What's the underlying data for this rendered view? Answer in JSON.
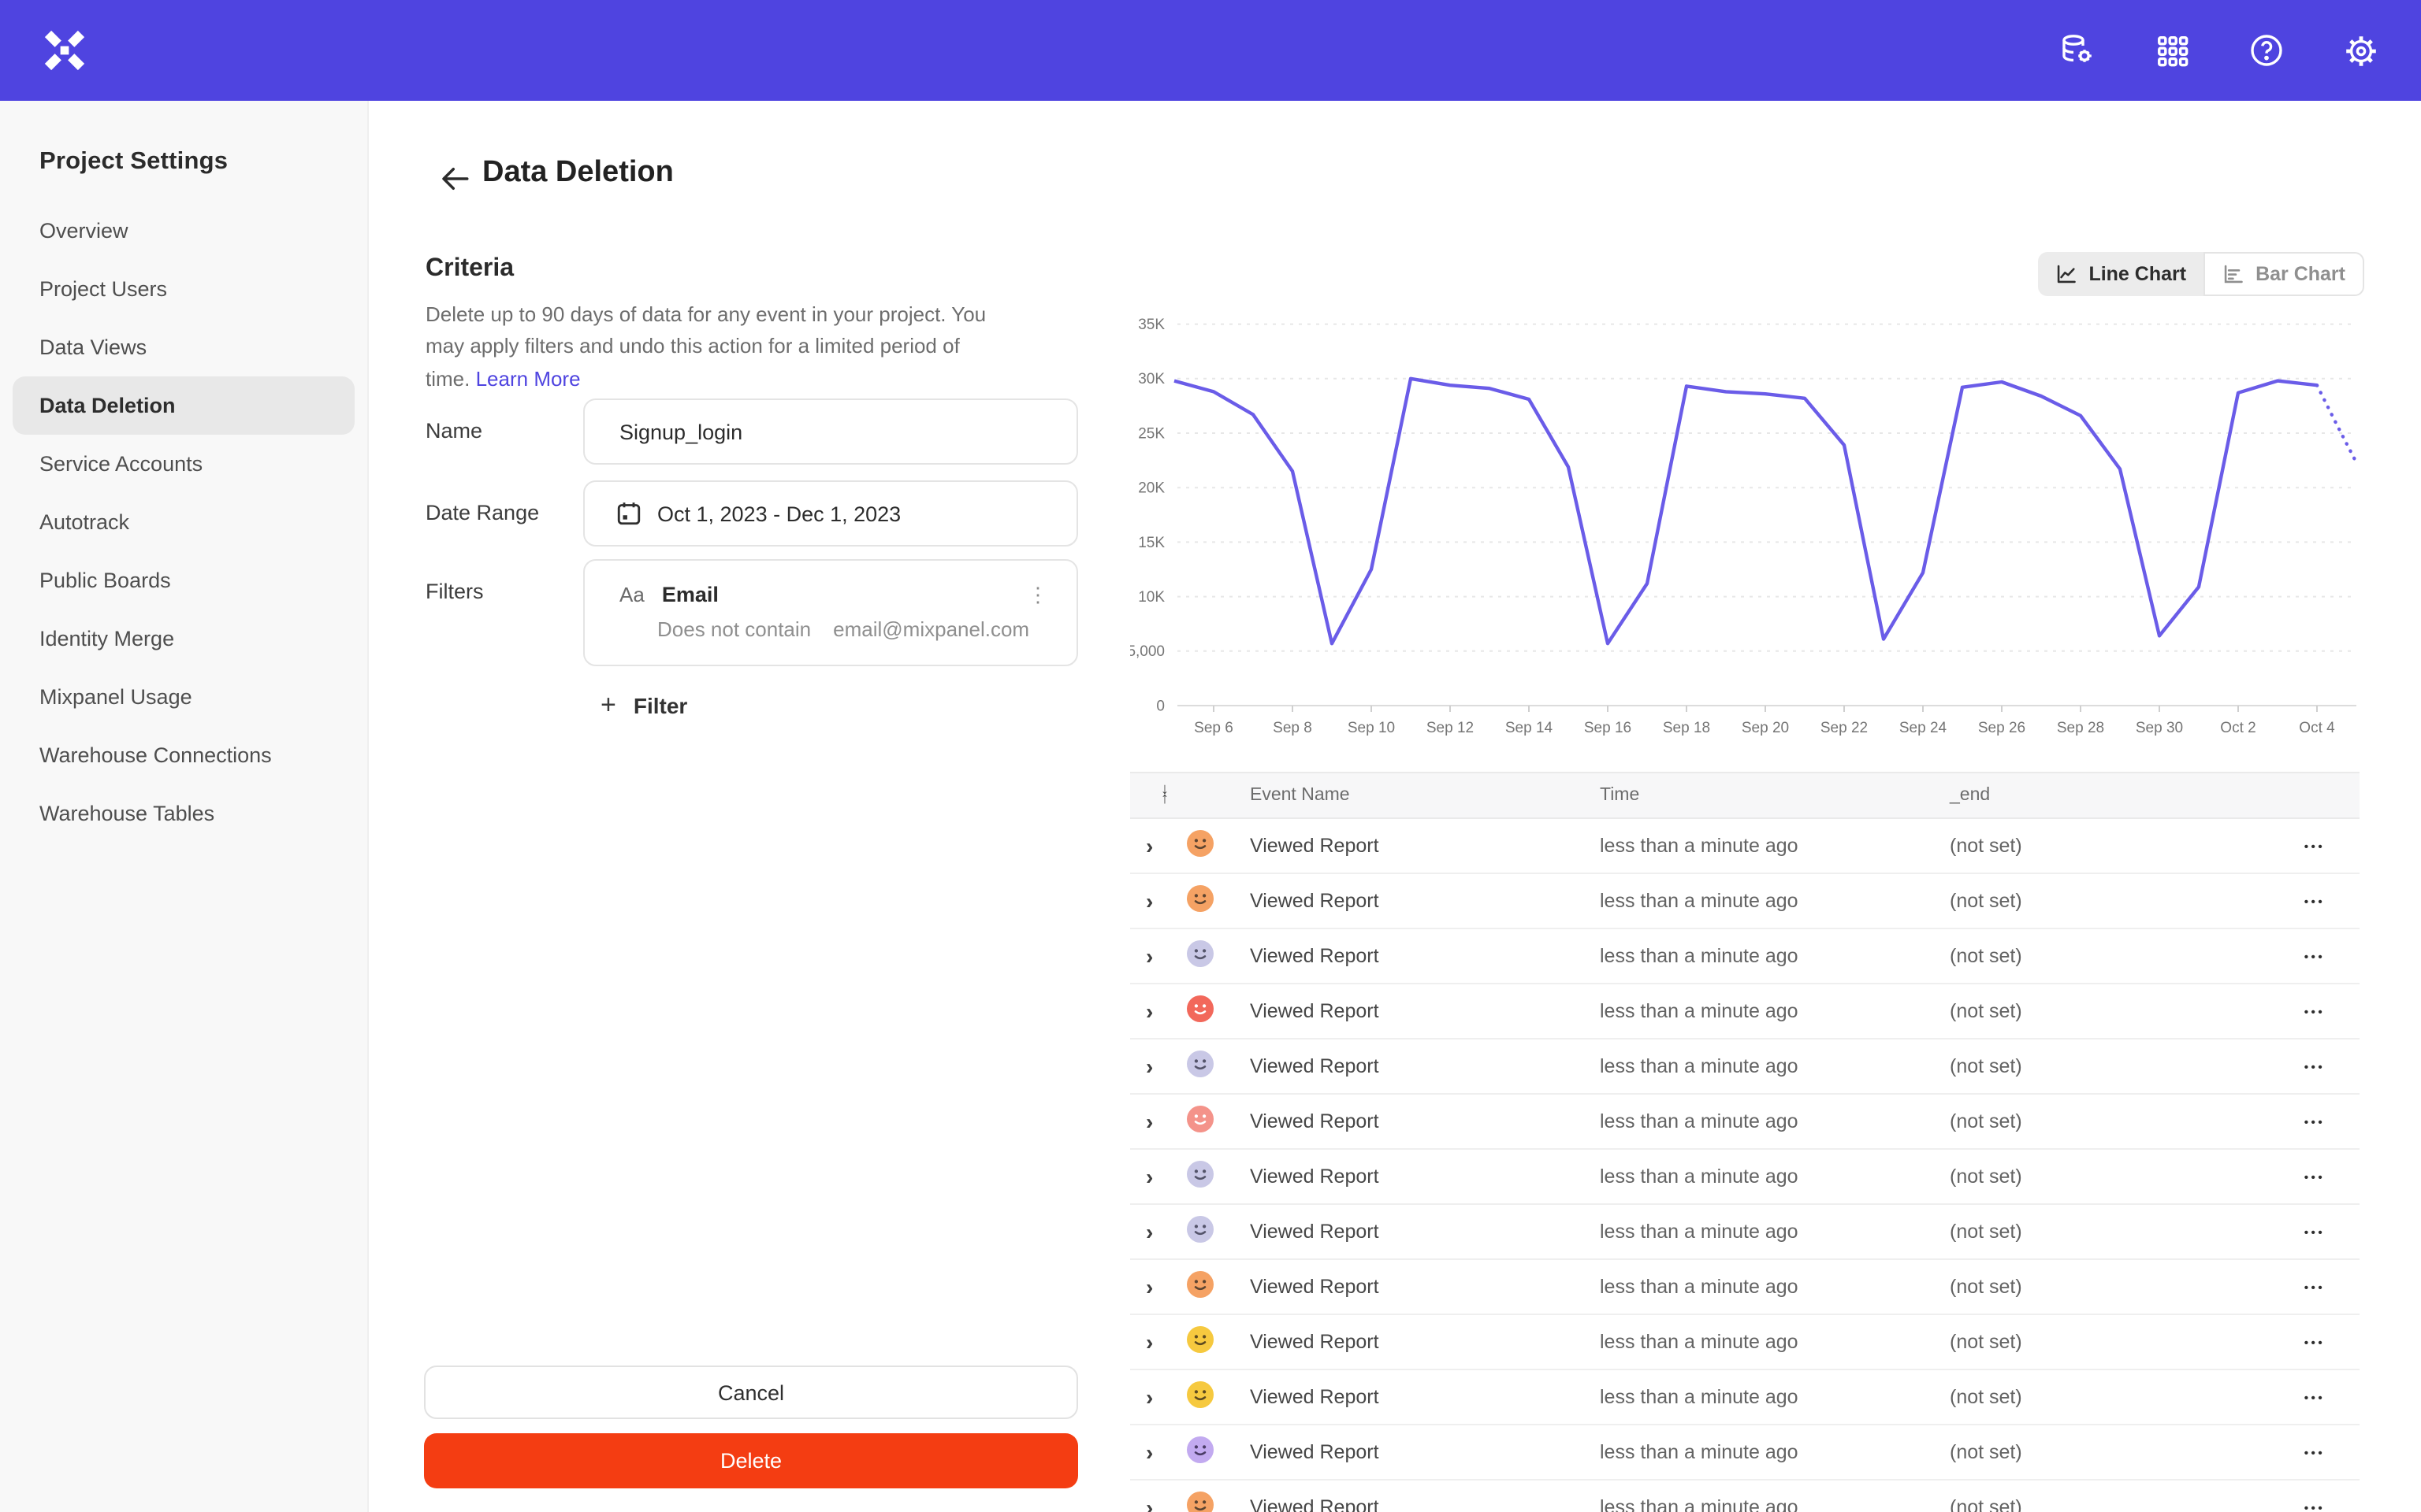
{
  "topbar": {
    "icons": [
      "data-pipeline",
      "apps-grid",
      "help",
      "settings"
    ]
  },
  "sidebar": {
    "title": "Project Settings",
    "items": [
      {
        "label": "Overview",
        "selected": false
      },
      {
        "label": "Project Users",
        "selected": false
      },
      {
        "label": "Data Views",
        "selected": false
      },
      {
        "label": "Data Deletion",
        "selected": true
      },
      {
        "label": "Service Accounts",
        "selected": false
      },
      {
        "label": "Autotrack",
        "selected": false
      },
      {
        "label": "Public Boards",
        "selected": false
      },
      {
        "label": "Identity Merge",
        "selected": false
      },
      {
        "label": "Mixpanel Usage",
        "selected": false
      },
      {
        "label": "Warehouse Connections",
        "selected": false
      },
      {
        "label": "Warehouse Tables",
        "selected": false
      }
    ]
  },
  "page": {
    "title": "Data Deletion"
  },
  "criteria": {
    "heading": "Criteria",
    "description": "Delete up to 90 days of data for any event in your project. You may apply filters and undo this action for a limited period of time.",
    "learn_more": "Learn More"
  },
  "form": {
    "name_label": "Name",
    "name_value": "Signup_login",
    "date_label": "Date Range",
    "date_value": "Oct 1, 2023 - Dec 1, 2023",
    "filters_label": "Filters",
    "filter": {
      "type_icon": "Aa",
      "property": "Email",
      "operator": "Does not contain",
      "value": "email@mixpanel.com"
    },
    "add_filter_label": "Filter"
  },
  "actions": {
    "cancel": "Cancel",
    "delete": "Delete"
  },
  "chart_toggle": {
    "line": "Line Chart",
    "bar": "Bar Chart",
    "selected": "line"
  },
  "chart_data": {
    "type": "line",
    "title": "",
    "xlabel": "",
    "ylabel": "",
    "x": [
      "Sep 5",
      "Sep 6",
      "Sep 7",
      "Sep 8",
      "Sep 9",
      "Sep 10",
      "Sep 11",
      "Sep 12",
      "Sep 13",
      "Sep 14",
      "Sep 15",
      "Sep 16",
      "Sep 17",
      "Sep 18",
      "Sep 19",
      "Sep 20",
      "Sep 21",
      "Sep 22",
      "Sep 23",
      "Sep 24",
      "Sep 25",
      "Sep 26",
      "Sep 27",
      "Sep 28",
      "Sep 29",
      "Sep 30",
      "Oct 1",
      "Oct 2",
      "Oct 3",
      "Oct 4"
    ],
    "values": [
      29800,
      28800,
      26700,
      21500,
      5700,
      12500,
      30000,
      29400,
      29100,
      28100,
      21900,
      5700,
      11200,
      29300,
      28800,
      28600,
      28200,
      23900,
      6100,
      12200,
      29200,
      29700,
      28400,
      26600,
      21700,
      6400,
      10900,
      28700,
      29800,
      29400
    ],
    "projected_values": [
      25800,
      22300
    ],
    "projected_note": "dotted tail after Oct 4 (incomplete day)",
    "ylim": [
      0,
      35000
    ],
    "yticks": [
      "35K",
      "30K",
      "25K",
      "20K",
      "15K",
      "10K",
      "5,000",
      "0"
    ],
    "ytick_values": [
      35000,
      30000,
      25000,
      20000,
      15000,
      10000,
      5000,
      0
    ],
    "xticks": [
      "Sep 6",
      "Sep 8",
      "Sep 10",
      "Sep 12",
      "Sep 14",
      "Sep 16",
      "Sep 18",
      "Sep 20",
      "Sep 22",
      "Sep 24",
      "Sep 26",
      "Sep 28",
      "Sep 30",
      "Oct 2",
      "Oct 4"
    ],
    "xtick_day_offsets": [
      1,
      3,
      5,
      7,
      9,
      11,
      13,
      15,
      17,
      19,
      21,
      23,
      25,
      27,
      29
    ],
    "line_color": "#6a5ce8",
    "grid": "dotted",
    "legend": "none"
  },
  "table": {
    "headers": [
      "Event Name",
      "Time",
      "_end"
    ],
    "rows": [
      {
        "avatar": "orange",
        "event": "Viewed Report",
        "time": "less than a minute ago",
        "end": "(not set)"
      },
      {
        "avatar": "orange",
        "event": "Viewed Report",
        "time": "less than a minute ago",
        "end": "(not set)"
      },
      {
        "avatar": "lavender",
        "event": "Viewed Report",
        "time": "less than a minute ago",
        "end": "(not set)"
      },
      {
        "avatar": "red",
        "event": "Viewed Report",
        "time": "less than a minute ago",
        "end": "(not set)"
      },
      {
        "avatar": "lavender",
        "event": "Viewed Report",
        "time": "less than a minute ago",
        "end": "(not set)"
      },
      {
        "avatar": "salmon",
        "event": "Viewed Report",
        "time": "less than a minute ago",
        "end": "(not set)"
      },
      {
        "avatar": "lavender",
        "event": "Viewed Report",
        "time": "less than a minute ago",
        "end": "(not set)"
      },
      {
        "avatar": "lavender",
        "event": "Viewed Report",
        "time": "less than a minute ago",
        "end": "(not set)"
      },
      {
        "avatar": "orange",
        "event": "Viewed Report",
        "time": "less than a minute ago",
        "end": "(not set)"
      },
      {
        "avatar": "yellow",
        "event": "Viewed Report",
        "time": "less than a minute ago",
        "end": "(not set)"
      },
      {
        "avatar": "yellow",
        "event": "Viewed Report",
        "time": "less than a minute ago",
        "end": "(not set)"
      },
      {
        "avatar": "purple",
        "event": "Viewed Report",
        "time": "less than a minute ago",
        "end": "(not set)"
      },
      {
        "avatar": "orange",
        "event": "Viewed Report",
        "time": "less than a minute ago",
        "end": "(not set)"
      }
    ]
  },
  "icons": {
    "kebab": "⋮",
    "ellipsis": "•••",
    "plus": "+",
    "chevron": "›",
    "sort_desc": "↓",
    "sort_asc": "↑"
  },
  "colors": {
    "brand_purple": "#4f44e0",
    "line_purple": "#6a5ce8",
    "delete_red": "#f43d12",
    "avatar_orange": "#f5a264",
    "avatar_lavender": "#c9c8e6",
    "avatar_red": "#f2685b",
    "avatar_salmon": "#f4938a",
    "avatar_yellow": "#f6c93f",
    "avatar_purple": "#c2aaf0"
  }
}
